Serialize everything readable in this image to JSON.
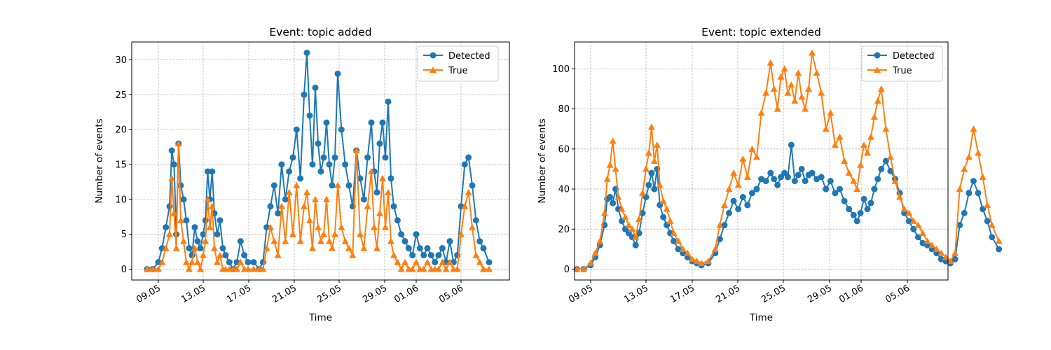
{
  "chart_data": [
    {
      "type": "line",
      "title": "Event: topic added",
      "xlabel": "Time",
      "ylabel": "Number of events",
      "x_tick_labels": [
        "09.05",
        "13.05",
        "17.05",
        "21.05",
        "25.05",
        "29.05",
        "01.06",
        "05.06"
      ],
      "y_ticks": [
        0,
        5,
        10,
        15,
        20,
        25,
        30
      ],
      "ylim": [
        -1.55,
        32.55
      ],
      "grid": true,
      "legend": {
        "location": "upper right",
        "entries": [
          "Detected",
          "True"
        ]
      },
      "series": [
        {
          "name": "Detected",
          "marker": "circle",
          "color": "#1f77b4",
          "x": [
            "08.05",
            "08.05",
            "09.05",
            "09.05",
            "09.05",
            "10.05",
            "10.05",
            "10.05",
            "10.05",
            "10.05",
            "11.05",
            "11.05",
            "11.05",
            "11.05",
            "12.05",
            "12.05",
            "12.05",
            "12.05",
            "13.05",
            "13.05",
            "13.05",
            "13.05",
            "13.05",
            "14.05",
            "14.05",
            "14.05",
            "14.05",
            "15.05",
            "15.05",
            "15.05",
            "16.05",
            "16.05",
            "16.05",
            "17.05",
            "17.05",
            "18.05",
            "18.05",
            "18.05",
            "19.05",
            "19.05",
            "19.05",
            "20.05",
            "20.05",
            "20.05",
            "21.05",
            "21.05",
            "21.05",
            "22.05",
            "22.05",
            "22.05",
            "22.05",
            "23.05",
            "23.05",
            "23.05",
            "23.05",
            "24.05",
            "24.05",
            "24.05",
            "24.05",
            "25.05",
            "25.05",
            "25.05",
            "26.05",
            "26.05",
            "26.05",
            "27.05",
            "27.05",
            "27.05",
            "28.05",
            "28.05",
            "28.05",
            "28.05",
            "29.05",
            "29.05",
            "29.05",
            "29.05",
            "30.05",
            "30.05",
            "30.05",
            "31.05",
            "31.05",
            "31.05",
            "01.06",
            "01.06",
            "01.06",
            "02.06",
            "02.06",
            "02.06",
            "03.06",
            "03.06",
            "03.06",
            "04.06",
            "04.06",
            "04.06",
            "05.06",
            "05.06",
            "05.06",
            "06.06",
            "06.06",
            "06.06",
            "07.06",
            "07.06"
          ],
          "y": [
            0,
            0,
            1,
            3,
            6,
            9,
            17,
            15,
            5,
            18,
            12,
            10,
            7,
            3,
            2,
            6,
            4,
            3,
            5,
            7,
            14,
            10,
            14,
            8,
            5,
            7,
            3,
            2,
            1,
            0,
            1,
            4,
            2,
            1,
            1,
            0,
            1,
            6,
            9,
            12,
            8,
            15,
            10,
            14,
            16,
            20,
            13,
            25,
            31,
            22,
            15,
            26,
            18,
            14,
            16,
            21,
            15,
            12,
            16,
            28,
            20,
            15,
            12,
            9,
            17,
            13,
            10,
            16,
            21,
            14,
            11,
            18,
            21,
            16,
            24,
            13,
            9,
            7,
            5,
            4,
            3,
            2,
            5,
            3,
            2,
            3,
            2,
            1,
            2,
            3,
            1,
            4,
            1,
            2,
            9,
            15,
            16,
            12,
            7,
            4,
            3,
            1
          ]
        },
        {
          "name": "True",
          "marker": "triangle",
          "color": "#ff7f0e",
          "x": [
            "08.05",
            "08.05",
            "09.05",
            "09.05",
            "09.05",
            "10.05",
            "10.05",
            "10.05",
            "10.05",
            "10.05",
            "11.05",
            "11.05",
            "11.05",
            "11.05",
            "12.05",
            "12.05",
            "12.05",
            "12.05",
            "13.05",
            "13.05",
            "13.05",
            "13.05",
            "13.05",
            "14.05",
            "14.05",
            "14.05",
            "14.05",
            "15.05",
            "15.05",
            "15.05",
            "16.05",
            "16.05",
            "16.05",
            "17.05",
            "17.05",
            "18.05",
            "18.05",
            "18.05",
            "19.05",
            "19.05",
            "19.05",
            "20.05",
            "20.05",
            "20.05",
            "21.05",
            "21.05",
            "21.05",
            "22.05",
            "22.05",
            "22.05",
            "22.05",
            "23.05",
            "23.05",
            "23.05",
            "23.05",
            "24.05",
            "24.05",
            "24.05",
            "24.05",
            "25.05",
            "25.05",
            "25.05",
            "26.05",
            "26.05",
            "26.05",
            "27.05",
            "27.05",
            "27.05",
            "28.05",
            "28.05",
            "28.05",
            "28.05",
            "29.05",
            "29.05",
            "29.05",
            "29.05",
            "30.05",
            "30.05",
            "30.05",
            "31.05",
            "31.05",
            "31.05",
            "01.06",
            "01.06",
            "01.06",
            "02.06",
            "02.06",
            "02.06",
            "03.06",
            "03.06",
            "03.06",
            "04.06",
            "04.06",
            "04.06",
            "05.06",
            "05.06",
            "05.06",
            "06.06",
            "06.06",
            "06.06",
            "07.06",
            "07.06"
          ],
          "y": [
            0,
            0,
            0,
            1,
            3,
            5,
            13,
            8,
            3,
            18,
            7,
            4,
            1,
            0,
            1,
            3,
            1,
            0,
            2,
            4,
            10,
            6,
            9,
            3,
            1,
            2,
            0,
            0,
            0,
            0,
            0,
            1,
            0,
            0,
            0,
            0,
            0,
            3,
            6,
            4,
            2,
            9,
            4,
            11,
            5,
            12,
            4,
            9,
            11,
            7,
            3,
            10,
            6,
            4,
            5,
            10,
            4,
            3,
            5,
            12,
            6,
            4,
            3,
            2,
            17,
            5,
            3,
            9,
            14,
            6,
            3,
            8,
            13,
            6,
            11,
            4,
            2,
            1,
            0,
            1,
            0,
            0,
            1,
            0,
            0,
            1,
            0,
            0,
            0,
            1,
            0,
            1,
            0,
            0,
            5,
            9,
            11,
            6,
            2,
            1,
            0,
            0
          ]
        }
      ]
    },
    {
      "type": "line",
      "title": "Event: topic extended",
      "xlabel": "Time",
      "ylabel": "Number of events",
      "x_tick_labels": [
        "09.05",
        "13.05",
        "17.05",
        "21.05",
        "25.05",
        "29.05",
        "01.06",
        "05.06"
      ],
      "y_ticks": [
        0,
        20,
        40,
        60,
        80,
        100
      ],
      "ylim": [
        -5.4,
        113.4
      ],
      "grid": true,
      "legend": {
        "location": "upper right",
        "entries": [
          "Detected",
          "True"
        ]
      },
      "series": [
        {
          "name": "Detected",
          "marker": "circle",
          "color": "#1f77b4",
          "x": [
            "08.05",
            "08.05",
            "09.05",
            "09.05",
            "09.05",
            "10.05",
            "10.05",
            "10.05",
            "10.05",
            "10.05",
            "11.05",
            "11.05",
            "11.05",
            "11.05",
            "12.05",
            "12.05",
            "12.05",
            "12.05",
            "13.05",
            "13.05",
            "13.05",
            "13.05",
            "13.05",
            "14.05",
            "14.05",
            "14.05",
            "14.05",
            "15.05",
            "15.05",
            "15.05",
            "16.05",
            "16.05",
            "16.05",
            "17.05",
            "17.05",
            "18.05",
            "18.05",
            "18.05",
            "19.05",
            "19.05",
            "19.05",
            "20.05",
            "20.05",
            "20.05",
            "21.05",
            "21.05",
            "21.05",
            "22.05",
            "22.05",
            "22.05",
            "22.05",
            "23.05",
            "23.05",
            "23.05",
            "23.05",
            "24.05",
            "24.05",
            "24.05",
            "24.05",
            "25.05",
            "25.05",
            "25.05",
            "26.05",
            "26.05",
            "26.05",
            "27.05",
            "27.05",
            "27.05",
            "28.05",
            "28.05",
            "28.05",
            "28.05",
            "29.05",
            "29.05",
            "29.05",
            "29.05",
            "30.05",
            "30.05",
            "30.05",
            "31.05",
            "31.05",
            "31.05",
            "01.06",
            "01.06",
            "01.06",
            "02.06",
            "02.06",
            "02.06",
            "03.06",
            "03.06",
            "03.06",
            "04.06",
            "04.06",
            "04.06",
            "05.06",
            "05.06",
            "05.06",
            "06.06",
            "06.06",
            "06.06",
            "07.06",
            "07.06"
          ],
          "y": [
            0,
            0,
            2,
            6,
            12,
            22,
            35,
            36,
            33,
            40,
            30,
            24,
            20,
            18,
            16,
            12,
            18,
            28,
            36,
            42,
            48,
            40,
            50,
            32,
            26,
            22,
            18,
            14,
            10,
            8,
            6,
            4,
            3,
            2,
            3,
            8,
            15,
            22,
            28,
            34,
            30,
            36,
            32,
            38,
            40,
            45,
            44,
            48,
            45,
            42,
            46,
            48,
            46,
            62,
            44,
            47,
            50,
            44,
            47,
            48,
            45,
            46,
            40,
            44,
            38,
            40,
            34,
            30,
            27,
            24,
            28,
            35,
            30,
            33,
            40,
            45,
            50,
            54,
            49,
            45,
            38,
            28,
            24,
            20,
            16,
            13,
            12,
            10,
            8,
            5,
            4,
            3,
            5,
            22,
            28,
            38,
            44,
            38,
            30,
            24,
            16,
            10
          ]
        },
        {
          "name": "True",
          "marker": "triangle",
          "color": "#ff7f0e",
          "x": [
            "08.05",
            "08.05",
            "09.05",
            "09.05",
            "09.05",
            "10.05",
            "10.05",
            "10.05",
            "10.05",
            "10.05",
            "11.05",
            "11.05",
            "11.05",
            "11.05",
            "12.05",
            "12.05",
            "12.05",
            "12.05",
            "13.05",
            "13.05",
            "13.05",
            "13.05",
            "13.05",
            "14.05",
            "14.05",
            "14.05",
            "14.05",
            "15.05",
            "15.05",
            "15.05",
            "16.05",
            "16.05",
            "16.05",
            "17.05",
            "17.05",
            "18.05",
            "18.05",
            "18.05",
            "19.05",
            "19.05",
            "19.05",
            "20.05",
            "20.05",
            "20.05",
            "21.05",
            "21.05",
            "21.05",
            "22.05",
            "22.05",
            "22.05",
            "22.05",
            "23.05",
            "23.05",
            "23.05",
            "23.05",
            "24.05",
            "24.05",
            "24.05",
            "24.05",
            "25.05",
            "25.05",
            "25.05",
            "26.05",
            "26.05",
            "26.05",
            "27.05",
            "27.05",
            "27.05",
            "28.05",
            "28.05",
            "28.05",
            "28.05",
            "29.05",
            "29.05",
            "29.05",
            "29.05",
            "30.05",
            "30.05",
            "30.05",
            "31.05",
            "31.05",
            "31.05",
            "01.06",
            "01.06",
            "01.06",
            "02.06",
            "02.06",
            "02.06",
            "03.06",
            "03.06",
            "03.06",
            "04.06",
            "04.06",
            "04.06",
            "05.06",
            "05.06",
            "05.06",
            "06.06",
            "06.06",
            "06.06",
            "07.06",
            "07.06"
          ],
          "y": [
            0,
            0,
            3,
            8,
            14,
            28,
            45,
            52,
            64,
            50,
            36,
            30,
            26,
            22,
            20,
            16,
            25,
            38,
            50,
            58,
            71,
            54,
            62,
            42,
            34,
            30,
            24,
            18,
            14,
            10,
            8,
            5,
            4,
            3,
            4,
            10,
            22,
            32,
            40,
            48,
            42,
            55,
            46,
            60,
            56,
            78,
            88,
            103,
            90,
            80,
            96,
            100,
            88,
            92,
            84,
            98,
            86,
            80,
            90,
            108,
            98,
            88,
            70,
            78,
            62,
            66,
            54,
            48,
            44,
            40,
            52,
            62,
            58,
            66,
            76,
            84,
            90,
            70,
            56,
            44,
            36,
            30,
            28,
            24,
            22,
            18,
            14,
            12,
            10,
            8,
            6,
            4,
            8,
            40,
            50,
            56,
            70,
            58,
            46,
            32,
            22,
            14
          ]
        }
      ]
    }
  ]
}
